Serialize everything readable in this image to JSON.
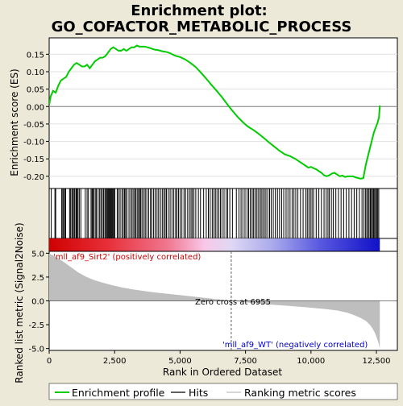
{
  "chart_data": {
    "type": "line",
    "title_line1": "Enrichment plot:",
    "title_line2": "GO_COFACTOR_METABOLIC_PROCESS",
    "top_panel": {
      "ylabel": "Enrichment score (ES)",
      "ylim": [
        -0.235,
        0.197
      ],
      "yticks": [
        0.15,
        0.1,
        0.05,
        0.0,
        -0.05,
        -0.1,
        -0.15,
        -0.2
      ],
      "ytick_labels": [
        "0.15",
        "0.10",
        "0.05",
        "0.00",
        "-0.05",
        "-0.10",
        "-0.15",
        "-0.20"
      ],
      "es_curve": {
        "x": [
          0,
          60,
          150,
          250,
          350,
          450,
          550,
          650,
          750,
          850,
          950,
          1050,
          1150,
          1250,
          1350,
          1450,
          1550,
          1650,
          1750,
          1850,
          1950,
          2050,
          2150,
          2250,
          2350,
          2450,
          2550,
          2650,
          2750,
          2850,
          2950,
          3050,
          3150,
          3250,
          3350,
          3450,
          3550,
          3650,
          3750,
          3850,
          3950,
          4050,
          4150,
          4250,
          4350,
          4450,
          4550,
          4650,
          4750,
          4850,
          5000,
          5200,
          5400,
          5600,
          5800,
          6000,
          6200,
          6400,
          6600,
          6800,
          6955,
          7200,
          7400,
          7600,
          7800,
          8000,
          8200,
          8400,
          8600,
          8800,
          9000,
          9200,
          9400,
          9600,
          9700,
          9800,
          9900,
          10000,
          10100,
          10200,
          10300,
          10400,
          10500,
          10600,
          10700,
          10800,
          10900,
          11000,
          11100,
          11200,
          11300,
          11400,
          11500,
          11600,
          11700,
          11800,
          11900,
          12000,
          12050,
          12100,
          12150,
          12200,
          12250,
          12300,
          12350,
          12400,
          12450,
          12500,
          12550,
          12600,
          12630
        ],
        "y": [
          0.005,
          0.03,
          0.045,
          0.04,
          0.06,
          0.075,
          0.08,
          0.085,
          0.1,
          0.11,
          0.12,
          0.125,
          0.12,
          0.115,
          0.115,
          0.12,
          0.11,
          0.12,
          0.13,
          0.135,
          0.14,
          0.14,
          0.145,
          0.155,
          0.165,
          0.17,
          0.165,
          0.16,
          0.16,
          0.165,
          0.16,
          0.165,
          0.17,
          0.17,
          0.175,
          0.172,
          0.172,
          0.172,
          0.17,
          0.168,
          0.165,
          0.163,
          0.162,
          0.16,
          0.158,
          0.157,
          0.155,
          0.152,
          0.148,
          0.145,
          0.142,
          0.135,
          0.125,
          0.113,
          0.097,
          0.08,
          0.062,
          0.045,
          0.027,
          0.007,
          -0.008,
          -0.03,
          -0.045,
          -0.058,
          -0.067,
          -0.078,
          -0.09,
          -0.103,
          -0.115,
          -0.127,
          -0.137,
          -0.142,
          -0.15,
          -0.16,
          -0.165,
          -0.17,
          -0.175,
          -0.173,
          -0.177,
          -0.18,
          -0.185,
          -0.19,
          -0.197,
          -0.2,
          -0.197,
          -0.192,
          -0.19,
          -0.195,
          -0.2,
          -0.198,
          -0.202,
          -0.2,
          -0.2,
          -0.2,
          -0.203,
          -0.205,
          -0.207,
          -0.205,
          -0.185,
          -0.165,
          -0.15,
          -0.135,
          -0.12,
          -0.105,
          -0.09,
          -0.075,
          -0.065,
          -0.055,
          -0.045,
          -0.03,
          0.003
        ]
      }
    },
    "hits_panel": {
      "hit_positions": [
        80,
        220,
        250,
        480,
        520,
        550,
        600,
        630,
        780,
        820,
        870,
        900,
        950,
        980,
        1030,
        1060,
        1100,
        1150,
        1210,
        1380,
        1450,
        1500,
        1600,
        1640,
        1670,
        1700,
        1760,
        1800,
        1870,
        1930,
        1980,
        2030,
        2080,
        2130,
        2170,
        2210,
        2240,
        2270,
        2300,
        2320,
        2350,
        2380,
        2410,
        2440,
        2470,
        2510,
        2600,
        2650,
        2710,
        2780,
        2830,
        2880,
        2920,
        2970,
        3050,
        3120,
        3170,
        3230,
        3280,
        3320,
        3380,
        3420,
        3470,
        3500,
        3550,
        3620,
        3670,
        3730,
        3800,
        3870,
        3920,
        3990,
        4050,
        4120,
        4180,
        4250,
        4320,
        4380,
        4430,
        4480,
        4550,
        4620,
        4690,
        4760,
        4830,
        4880,
        4940,
        5000,
        5070,
        5150,
        5210,
        5290,
        5360,
        5420,
        5470,
        5530,
        5600,
        5700,
        5780,
        5900,
        6000,
        6080,
        6150,
        6230,
        6290,
        6350,
        6410,
        6480,
        6540,
        6600,
        6680,
        6760,
        6820,
        6900,
        7000,
        7150,
        7250,
        7330,
        7400,
        7480,
        7560,
        7620,
        7680,
        7750,
        7800,
        7860,
        7920,
        7980,
        8050,
        8100,
        8160,
        8220,
        8280,
        8350,
        8420,
        8480,
        8560,
        8640,
        8720,
        8800,
        8880,
        8960,
        9050,
        9120,
        9200,
        9280,
        9350,
        9420,
        9500,
        9600,
        9700,
        9800,
        9860,
        9920,
        9980,
        10040,
        10100,
        10200,
        10300,
        10400,
        10500,
        10580,
        10650,
        10700,
        10780,
        10850,
        10950,
        11050,
        11150,
        11250,
        11350,
        11450,
        11550,
        11650,
        11750,
        11850,
        11950,
        12020,
        12080,
        12130,
        12180,
        12220,
        12270,
        12310,
        12350,
        12390,
        12430,
        12470,
        12510,
        12550,
        12590
      ]
    },
    "rank_bar": {
      "positive_color": "#cc0000",
      "negative_color": "#0000cc",
      "zero_cross": 6955
    },
    "metric_panel": {
      "ylabel": "Ranked list metric (Signal2Noise)",
      "xlabel": "Rank in Ordered Dataset",
      "ylim": [
        -5.2,
        5.2
      ],
      "yticks": [
        5.0,
        2.5,
        0.0,
        -2.5,
        -5.0
      ],
      "ytick_labels": [
        "5.0",
        "2.5",
        "0.0",
        "-2.5",
        "-5.0"
      ],
      "xlim": [
        0,
        13300
      ],
      "xticks": [
        0,
        2500,
        5000,
        7500,
        10000,
        12500
      ],
      "xtick_labels": [
        "0",
        "2,500",
        "5,000",
        "7,500",
        "10,000",
        "12,500"
      ],
      "zero_cross_label": "Zero cross at 6955",
      "positive_label": "'mll_af9_Sirt2' (positively correlated)",
      "negative_label": "'mll_af9_WT' (negatively correlated)",
      "positive_label_color": "#cc0000",
      "negative_label_color": "#0000cc",
      "metric_curve": {
        "x": [
          0,
          200,
          500,
          800,
          1100,
          1400,
          1700,
          2000,
          2400,
          2800,
          3200,
          3600,
          4000,
          4500,
          5000,
          5500,
          6000,
          6500,
          6955,
          7500,
          8000,
          8500,
          9000,
          9500,
          10000,
          10500,
          11000,
          11400,
          11700,
          11900,
          12100,
          12250,
          12350,
          12450,
          12530,
          12600,
          12630
        ],
        "y": [
          4.95,
          4.7,
          4.2,
          3.6,
          3.0,
          2.55,
          2.2,
          1.95,
          1.65,
          1.4,
          1.2,
          1.05,
          0.9,
          0.75,
          0.6,
          0.45,
          0.3,
          0.15,
          0.0,
          -0.15,
          -0.28,
          -0.4,
          -0.5,
          -0.6,
          -0.72,
          -0.85,
          -1.0,
          -1.25,
          -1.55,
          -1.8,
          -2.1,
          -2.5,
          -2.9,
          -3.4,
          -4.0,
          -4.6,
          -5.0
        ]
      }
    },
    "legend": {
      "entries": [
        {
          "label": "Enrichment profile",
          "color": "#00cc00"
        },
        {
          "label": "Hits",
          "color": "#000000"
        },
        {
          "label": "Ranking metric scores",
          "color": "#bebebe"
        }
      ]
    }
  }
}
